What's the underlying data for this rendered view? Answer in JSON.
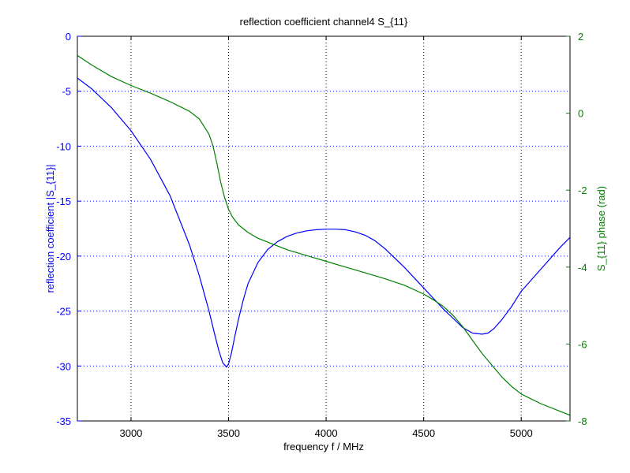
{
  "chart_data": {
    "type": "line",
    "title": "reflection coefficient channel4 S_{11}",
    "xlabel": "frequency f / MHz",
    "ylabel_left": "reflection coefficient |S_{11}|",
    "ylabel_right": "S_{11} phase (rad)",
    "xlim": [
      2725,
      5250
    ],
    "ylim_left": [
      -35,
      0
    ],
    "ylim_right": [
      -8,
      2
    ],
    "xticks": [
      "3000",
      "3500",
      "4000",
      "4500",
      "5000"
    ],
    "yticks_left": [
      "0",
      "-5",
      "-10",
      "-15",
      "-20",
      "-25",
      "-30",
      "-35"
    ],
    "yticks_right": [
      "2",
      "0",
      "-2",
      "-4",
      "-6",
      "-8"
    ],
    "grid": true,
    "colors": {
      "left_axis": "#0000ff",
      "right_axis": "#008000",
      "grid": "#0000ff",
      "frame": "#000000"
    },
    "series": [
      {
        "axis": "left",
        "color": "#0000ff",
        "x": [
          2725,
          2800,
          2900,
          3000,
          3100,
          3200,
          3300,
          3350,
          3400,
          3430,
          3450,
          3470,
          3490,
          3500,
          3515,
          3530,
          3550,
          3575,
          3600,
          3650,
          3700,
          3750,
          3800,
          3850,
          3900,
          3950,
          4000,
          4050,
          4100,
          4150,
          4200,
          4250,
          4300,
          4400,
          4500,
          4600,
          4700,
          4750,
          4800,
          4830,
          4860,
          4900,
          4950,
          5000,
          5100,
          5200,
          5250
        ],
        "values": [
          -3.8,
          -4.8,
          -6.5,
          -8.6,
          -11.2,
          -14.5,
          -19.0,
          -21.8,
          -25.0,
          -27.2,
          -28.6,
          -29.7,
          -30.1,
          -29.8,
          -28.8,
          -27.5,
          -25.8,
          -24.0,
          -22.5,
          -20.6,
          -19.4,
          -18.7,
          -18.2,
          -17.9,
          -17.7,
          -17.6,
          -17.55,
          -17.55,
          -17.6,
          -17.8,
          -18.1,
          -18.6,
          -19.3,
          -21.0,
          -22.9,
          -24.8,
          -26.5,
          -27.0,
          -27.1,
          -27.0,
          -26.6,
          -25.8,
          -24.6,
          -23.2,
          -21.2,
          -19.2,
          -18.3
        ],
        "name": ""
      },
      {
        "axis": "right",
        "color": "#008000",
        "x": [
          2725,
          2800,
          2900,
          3000,
          3100,
          3200,
          3300,
          3350,
          3400,
          3420,
          3440,
          3460,
          3480,
          3500,
          3520,
          3550,
          3600,
          3650,
          3700,
          3800,
          3900,
          4000,
          4100,
          4200,
          4300,
          4400,
          4500,
          4550,
          4600,
          4650,
          4700,
          4750,
          4800,
          4850,
          4900,
          4950,
          5000,
          5100,
          5200,
          5250
        ],
        "values": [
          1.5,
          1.25,
          0.95,
          0.72,
          0.52,
          0.3,
          0.05,
          -0.15,
          -0.55,
          -0.85,
          -1.3,
          -1.8,
          -2.2,
          -2.5,
          -2.7,
          -2.9,
          -3.1,
          -3.25,
          -3.35,
          -3.55,
          -3.7,
          -3.85,
          -4.0,
          -4.15,
          -4.3,
          -4.47,
          -4.7,
          -4.85,
          -5.02,
          -5.25,
          -5.55,
          -5.9,
          -6.25,
          -6.55,
          -6.85,
          -7.1,
          -7.3,
          -7.55,
          -7.75,
          -7.85
        ],
        "name": ""
      }
    ]
  }
}
